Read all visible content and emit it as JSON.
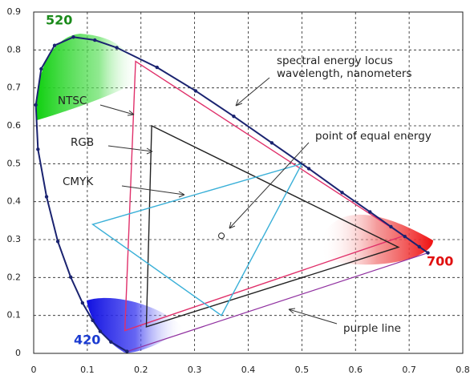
{
  "chart_data": {
    "type": "chromaticity",
    "xlim": [
      0,
      0.8
    ],
    "ylim": [
      0,
      0.9
    ],
    "xticks": [
      0,
      0.1,
      0.2,
      0.3,
      0.4,
      0.5,
      0.6,
      0.7,
      0.8
    ],
    "yticks": [
      0,
      0.1,
      0.2,
      0.3,
      0.4,
      0.5,
      0.6,
      0.7,
      0.8,
      0.9
    ],
    "grid": true,
    "locus": {
      "color": "#1a2370",
      "x": [
        0.174,
        0.144,
        0.124,
        0.11,
        0.091,
        0.069,
        0.045,
        0.024,
        0.008,
        0.004,
        0.014,
        0.039,
        0.074,
        0.114,
        0.155,
        0.23,
        0.302,
        0.373,
        0.444,
        0.513,
        0.575,
        0.627,
        0.666,
        0.692,
        0.719,
        0.735
      ],
      "values": [
        0.005,
        0.03,
        0.058,
        0.087,
        0.133,
        0.201,
        0.295,
        0.413,
        0.538,
        0.655,
        0.75,
        0.812,
        0.834,
        0.826,
        0.806,
        0.754,
        0.692,
        0.625,
        0.555,
        0.487,
        0.424,
        0.373,
        0.334,
        0.308,
        0.281,
        0.265
      ]
    },
    "series": [
      {
        "name": "NTSC",
        "color": "#e0306a",
        "x": [
          0.19,
          0.69,
          0.17
        ],
        "values": [
          0.77,
          0.31,
          0.06
        ]
      },
      {
        "name": "RGB",
        "color": "#222222",
        "x": [
          0.22,
          0.68,
          0.21
        ],
        "values": [
          0.6,
          0.28,
          0.07
        ]
      },
      {
        "name": "CMYK",
        "color": "#3ab0d8",
        "x": [
          0.11,
          0.5,
          0.35
        ],
        "values": [
          0.34,
          0.5,
          0.1
        ]
      }
    ],
    "equal_energy_point": {
      "x": 0.35,
      "value": 0.31
    },
    "wavelength_labels": [
      "520",
      "700",
      "420"
    ],
    "annotations": [
      "spectral energy locus",
      "wavelength, nanometers",
      "point of equal energy",
      "purple line"
    ]
  }
}
